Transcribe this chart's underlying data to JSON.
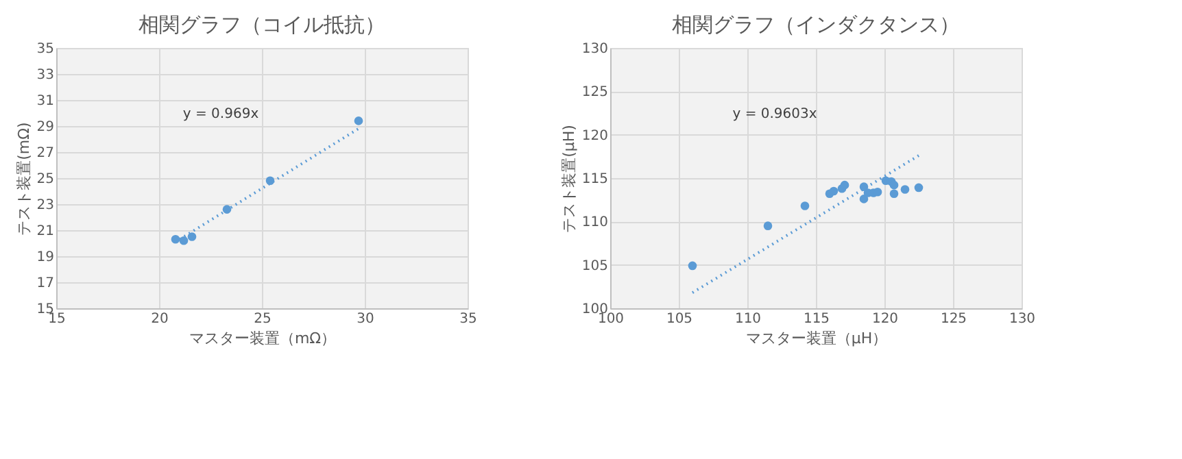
{
  "chart_data": [
    {
      "type": "scatter",
      "title": "相関グラフ（コイル抵抗）",
      "xlabel": "マスター装置（mΩ）",
      "ylabel": "テスト装置(mΩ)",
      "xlim": [
        15,
        35
      ],
      "xticks": [
        15,
        20,
        25,
        30,
        35
      ],
      "ylim": [
        15,
        35
      ],
      "yticks": [
        15,
        17,
        19,
        21,
        23,
        25,
        27,
        29,
        31,
        33,
        35
      ],
      "grid": true,
      "marker": "circle",
      "series": [
        {
          "color": "#5b9bd5",
          "x": [
            20.8,
            21.2,
            21.6,
            23.3,
            25.4,
            29.7
          ],
          "values": [
            20.3,
            20.2,
            20.5,
            22.6,
            24.8,
            29.4
          ]
        },
        {
          "type": "line",
          "line_style": "dotted",
          "marker": "none",
          "color": "#5b9bd5",
          "x": [
            21.0,
            29.7
          ],
          "values": [
            20.3,
            28.8
          ]
        }
      ],
      "annotations": [
        "y = 0.969x"
      ]
    },
    {
      "type": "scatter",
      "title": "相関グラフ（インダクタンス）",
      "xlabel": "マスター装置（μH）",
      "ylabel": "テスト装置(μH)",
      "xlim": [
        100,
        130
      ],
      "xticks": [
        100,
        105,
        110,
        115,
        120,
        125,
        130
      ],
      "ylim": [
        100,
        130
      ],
      "yticks": [
        100,
        105,
        110,
        115,
        120,
        125,
        130
      ],
      "grid": true,
      "marker": "circle",
      "series": [
        {
          "color": "#5b9bd5",
          "x": [
            106.0,
            111.5,
            114.2,
            116.0,
            116.3,
            116.9,
            117.1,
            118.5,
            118.5,
            118.8,
            119.2,
            119.5,
            120.1,
            120.5,
            120.7,
            120.7,
            121.5,
            122.5
          ],
          "values": [
            104.9,
            109.5,
            111.8,
            113.2,
            113.5,
            113.8,
            114.2,
            114.0,
            112.6,
            113.3,
            113.3,
            113.4,
            114.7,
            114.6,
            114.2,
            113.2,
            113.7,
            113.9
          ]
        },
        {
          "type": "line",
          "line_style": "dotted",
          "marker": "none",
          "color": "#5b9bd5",
          "x": [
            106.0,
            122.5
          ],
          "values": [
            101.8,
            117.6
          ]
        }
      ],
      "annotations": [
        "y = 0.9603x"
      ]
    }
  ]
}
